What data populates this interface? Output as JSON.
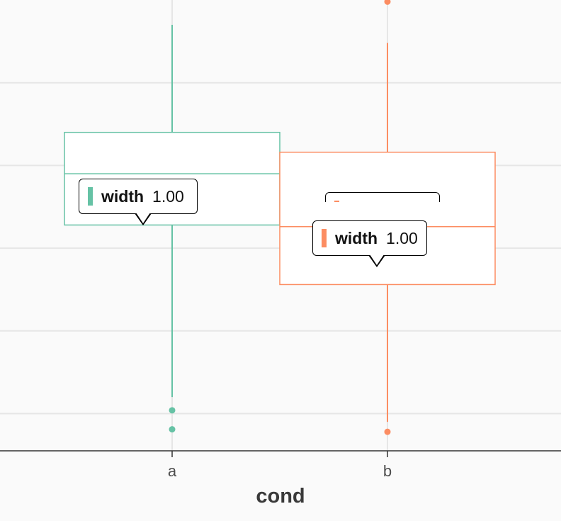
{
  "chart_data": {
    "type": "boxplot",
    "xlabel": "cond",
    "categories": [
      "a",
      "b"
    ],
    "y_domain": [
      -2.45,
      3.0
    ],
    "grid": true,
    "series": [
      {
        "category": "a",
        "color": "#66c2a5",
        "whisker_low": -1.8,
        "q1": 0.28,
        "median": 0.9,
        "q3": 1.4,
        "whisker_high": 2.7,
        "outliers": [
          -1.96,
          -2.19
        ]
      },
      {
        "category": "b",
        "color": "#fc8d62",
        "whisker_low": -2.1,
        "q1": -0.44,
        "median": 0.26,
        "q3": 1.16,
        "whisker_high": 2.48,
        "outliers": [
          -2.22,
          2.98
        ]
      }
    ],
    "tooltips": [
      {
        "id": "tip-a-back",
        "category": "a",
        "name": "width",
        "value": "1.00",
        "color": "#66c2a5"
      },
      {
        "id": "tip-a-front",
        "category": "a",
        "name": "width",
        "value": "1.00",
        "color": "#66c2a5"
      },
      {
        "id": "tip-b-back",
        "category": "b",
        "name": "width",
        "value": "1.00",
        "color": "#fc8d62"
      },
      {
        "id": "tip-b-front",
        "category": "b",
        "name": "width",
        "value": "1.00",
        "color": "#fc8d62"
      }
    ]
  }
}
